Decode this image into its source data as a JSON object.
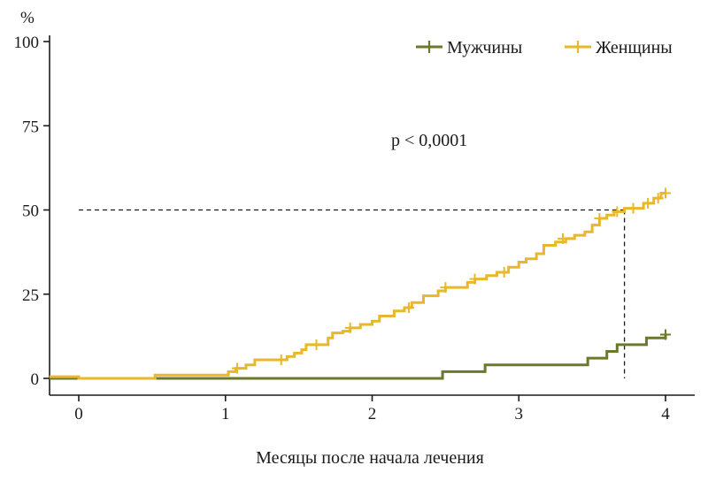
{
  "chart_data": {
    "type": "line",
    "title": "",
    "xlabel": "Месяцы после начала лечения",
    "ylabel": "%",
    "xlim": [
      -0.2,
      4.1
    ],
    "ylim": [
      0,
      100
    ],
    "x_ticks": [
      0,
      1,
      2,
      3,
      4
    ],
    "x_tick_labels": [
      "0",
      "1",
      "2",
      "3",
      "4"
    ],
    "y_ticks": [
      0,
      25,
      50,
      75,
      100
    ],
    "y_tick_labels": [
      "0",
      "25",
      "50",
      "75",
      "100"
    ],
    "grid": false,
    "legend_placement": "top-right",
    "annotation": "p < 0,0001",
    "reference_lines": {
      "median_y": 50,
      "median_x": 3.72,
      "horizontal_from_x": 0
    },
    "series": [
      {
        "name": "Мужчины",
        "color": "#6b7a2a",
        "step": "post",
        "points": [
          [
            -0.2,
            0
          ],
          [
            2.48,
            0
          ],
          [
            2.48,
            2
          ],
          [
            2.77,
            2
          ],
          [
            2.77,
            4
          ],
          [
            3.47,
            4
          ],
          [
            3.47,
            6
          ],
          [
            3.6,
            6
          ],
          [
            3.6,
            8
          ],
          [
            3.67,
            8
          ],
          [
            3.67,
            10
          ],
          [
            3.87,
            10
          ],
          [
            3.87,
            12
          ],
          [
            4.0,
            12
          ],
          [
            4.0,
            13
          ]
        ],
        "censor_marks": [
          [
            4.0,
            13
          ]
        ]
      },
      {
        "name": "Женщины",
        "color": "#e8b72a",
        "step": "post",
        "points": [
          [
            -0.2,
            0.5
          ],
          [
            0,
            0.5
          ],
          [
            0,
            0
          ],
          [
            0.52,
            0
          ],
          [
            0.52,
            1
          ],
          [
            1.0,
            1
          ],
          [
            1.02,
            2
          ],
          [
            1.07,
            3
          ],
          [
            1.14,
            4
          ],
          [
            1.2,
            5.5
          ],
          [
            1.37,
            5.5
          ],
          [
            1.42,
            6.5
          ],
          [
            1.47,
            7.5
          ],
          [
            1.52,
            8.5
          ],
          [
            1.55,
            10
          ],
          [
            1.65,
            10
          ],
          [
            1.7,
            12
          ],
          [
            1.73,
            13.5
          ],
          [
            1.8,
            14
          ],
          [
            1.85,
            15
          ],
          [
            1.92,
            16
          ],
          [
            2.0,
            17
          ],
          [
            2.05,
            18.5
          ],
          [
            2.15,
            20
          ],
          [
            2.22,
            21
          ],
          [
            2.27,
            22.5
          ],
          [
            2.35,
            24.5
          ],
          [
            2.45,
            26
          ],
          [
            2.5,
            27
          ],
          [
            2.65,
            28.5
          ],
          [
            2.7,
            29.5
          ],
          [
            2.78,
            30.5
          ],
          [
            2.85,
            31.5
          ],
          [
            2.93,
            33
          ],
          [
            3.0,
            34.5
          ],
          [
            3.05,
            35.5
          ],
          [
            3.12,
            37
          ],
          [
            3.17,
            39.5
          ],
          [
            3.25,
            40.5
          ],
          [
            3.32,
            41.5
          ],
          [
            3.38,
            42.5
          ],
          [
            3.45,
            43.5
          ],
          [
            3.5,
            45.5
          ],
          [
            3.55,
            47.5
          ],
          [
            3.6,
            48.5
          ],
          [
            3.65,
            49.5
          ],
          [
            3.72,
            50.5
          ],
          [
            3.85,
            52
          ],
          [
            3.92,
            53.5
          ],
          [
            3.97,
            55
          ],
          [
            4.0,
            55
          ]
        ],
        "censor_marks": [
          [
            1.08,
            3
          ],
          [
            1.38,
            5.5
          ],
          [
            1.62,
            10
          ],
          [
            1.85,
            15
          ],
          [
            2.25,
            21
          ],
          [
            2.5,
            27
          ],
          [
            2.7,
            29.5
          ],
          [
            2.9,
            31.5
          ],
          [
            3.3,
            41.5
          ],
          [
            3.55,
            47.5
          ],
          [
            3.67,
            49.5
          ],
          [
            3.78,
            50.5
          ],
          [
            3.88,
            52
          ],
          [
            3.95,
            53.5
          ],
          [
            4.0,
            55
          ]
        ]
      }
    ]
  }
}
